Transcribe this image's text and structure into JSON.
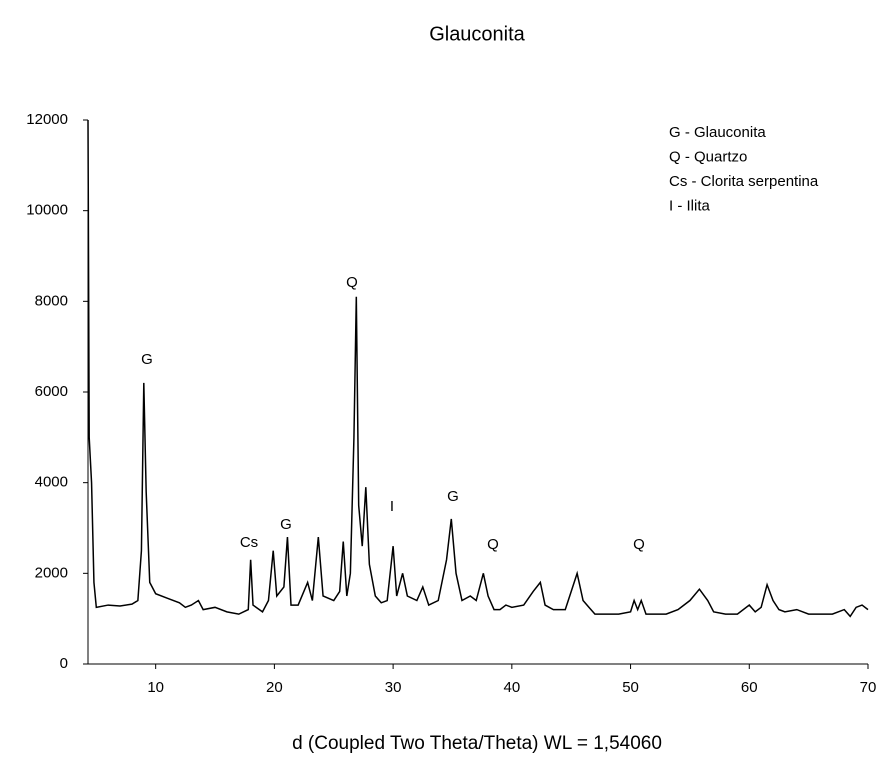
{
  "chart_data": {
    "type": "line",
    "title": "Glauconita",
    "x_label": "d (Coupled Two Theta/Theta) WL = 1,54060",
    "legend_text": [
      "G - Glauconita",
      "Q - Quartzo",
      "Cs - Clorita serpentina",
      "I - Ilita"
    ],
    "annotations": [
      "G",
      "Q",
      "Cs",
      "G",
      "I",
      "G",
      "Q",
      "Q"
    ],
    "xlim": [
      4.3,
      70
    ],
    "xticks": [
      10,
      20,
      30,
      40,
      50,
      60,
      70
    ],
    "ylim": [
      0,
      12000
    ],
    "yticks": [
      0,
      2000,
      4000,
      6000,
      8000,
      10000,
      12000
    ],
    "color": "#000000",
    "x": [
      4.3,
      4.4,
      4.6,
      4.8,
      5.0,
      6,
      7,
      8,
      8.5,
      8.8,
      9.0,
      9.2,
      9.5,
      10,
      11,
      12,
      12.5,
      13,
      13.6,
      14,
      15,
      16,
      17,
      17.8,
      18.0,
      18.2,
      19,
      19.5,
      19.9,
      20.2,
      20.8,
      21.1,
      21.4,
      22,
      22.8,
      23.2,
      23.7,
      24.1,
      25,
      25.5,
      25.8,
      26.1,
      26.4,
      26.7,
      26.9,
      27.1,
      27.4,
      27.7,
      28.0,
      28.5,
      29,
      29.5,
      30.0,
      30.3,
      30.8,
      31.2,
      32,
      32.5,
      33,
      33.8,
      34.5,
      34.9,
      35.3,
      35.8,
      36.5,
      37,
      37.6,
      38,
      38.5,
      39,
      39.5,
      40,
      41,
      41.8,
      42.4,
      42.8,
      43.5,
      44.5,
      45.5,
      46,
      46.5,
      47,
      48,
      49,
      50,
      50.3,
      50.6,
      50.9,
      51.3,
      52,
      53,
      54,
      55,
      55.8,
      56.5,
      57,
      58,
      59,
      60,
      60.5,
      61,
      61.5,
      62,
      62.5,
      63,
      64,
      65,
      66,
      67,
      68,
      68.5,
      69,
      69.5,
      70
    ],
    "values": [
      12000,
      5000,
      4000,
      1800,
      1250,
      1300,
      1280,
      1320,
      1400,
      2500,
      6200,
      3800,
      1800,
      1550,
      1450,
      1350,
      1250,
      1300,
      1400,
      1200,
      1250,
      1150,
      1100,
      1200,
      2300,
      1300,
      1150,
      1400,
      2500,
      1500,
      1700,
      2800,
      1300,
      1300,
      1800,
      1400,
      2800,
      1500,
      1400,
      1600,
      2700,
      1500,
      2000,
      5000,
      8100,
      3500,
      2600,
      3900,
      2200,
      1500,
      1350,
      1400,
      2600,
      1500,
      2000,
      1500,
      1400,
      1700,
      1300,
      1400,
      2300,
      3200,
      2000,
      1400,
      1500,
      1400,
      2000,
      1500,
      1200,
      1200,
      1300,
      1250,
      1300,
      1600,
      1800,
      1300,
      1200,
      1200,
      2000,
      1400,
      1250,
      1100,
      1100,
      1100,
      1150,
      1400,
      1200,
      1400,
      1100,
      1100,
      1100,
      1200,
      1400,
      1650,
      1400,
      1150,
      1100,
      1100,
      1300,
      1150,
      1250,
      1750,
      1400,
      1200,
      1150,
      1200,
      1100,
      1100,
      1100,
      1200,
      1050,
      1250,
      1300,
      1200
    ]
  }
}
